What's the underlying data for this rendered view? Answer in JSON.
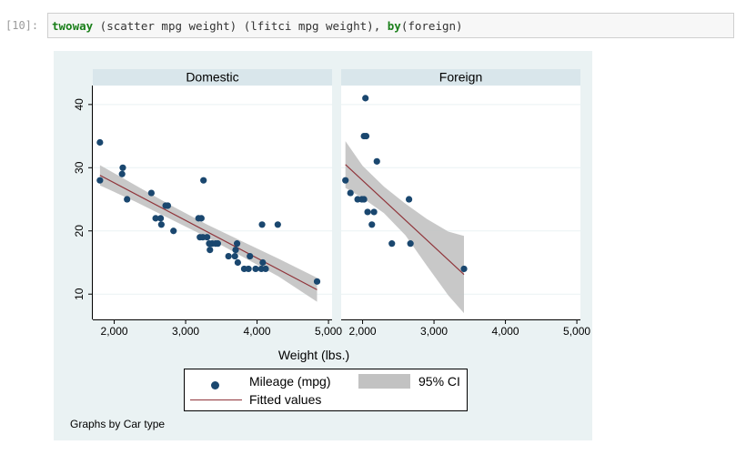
{
  "cell": {
    "prompt": "[10]:",
    "code_parts": [
      {
        "text": "twoway",
        "kw": true
      },
      {
        "text": " (scatter mpg weight) (lfitci mpg weight), ",
        "kw": false
      },
      {
        "text": "by",
        "kw": true
      },
      {
        "text": "(foreign)",
        "kw": false
      }
    ]
  },
  "colors": {
    "marker": "#1a476f",
    "fit_line": "#90353b",
    "ci_band": "#c2c2c2",
    "header": "#d9e6eb",
    "outer_bg": "#eaf2f3",
    "gridline": "#eaf2f3"
  },
  "chart_data": {
    "type": "scatter",
    "by_note": "Graphs by Car type",
    "xlabel": "Weight (lbs.)",
    "ylabel": "",
    "xlim": [
      1700,
      5050
    ],
    "ylim": [
      6,
      43
    ],
    "xticks": [
      2000,
      3000,
      4000,
      5000
    ],
    "xtick_labels": [
      "2,000",
      "3,000",
      "4,000",
      "5,000"
    ],
    "yticks": [
      10,
      20,
      30,
      40
    ],
    "ytick_labels": [
      "10",
      "20",
      "30",
      "40"
    ],
    "grid": true,
    "legend": {
      "placement": "bottom",
      "entries": [
        {
          "label": "Mileage (mpg)",
          "kind": "marker"
        },
        {
          "label": "95% CI",
          "kind": "band"
        },
        {
          "label": "Fitted values",
          "kind": "line"
        }
      ]
    },
    "panels": [
      {
        "title": "Domestic",
        "points": [
          [
            1800,
            34
          ],
          [
            1800,
            28
          ],
          [
            2120,
            30
          ],
          [
            2110,
            29
          ],
          [
            2180,
            25
          ],
          [
            2520,
            26
          ],
          [
            2580,
            22
          ],
          [
            2650,
            22
          ],
          [
            2660,
            21
          ],
          [
            2720,
            24
          ],
          [
            2750,
            24
          ],
          [
            2830,
            20
          ],
          [
            3180,
            22
          ],
          [
            3220,
            22
          ],
          [
            3250,
            28
          ],
          [
            3200,
            19
          ],
          [
            3240,
            19
          ],
          [
            3300,
            19
          ],
          [
            3330,
            18
          ],
          [
            3340,
            17
          ],
          [
            3370,
            18
          ],
          [
            3420,
            18
          ],
          [
            3450,
            18
          ],
          [
            3600,
            16
          ],
          [
            3690,
            16
          ],
          [
            3700,
            17
          ],
          [
            3720,
            18
          ],
          [
            3730,
            15
          ],
          [
            3820,
            14
          ],
          [
            3880,
            14
          ],
          [
            3900,
            16
          ],
          [
            3980,
            14
          ],
          [
            4060,
            14
          ],
          [
            4070,
            21
          ],
          [
            4080,
            15
          ],
          [
            4120,
            14
          ],
          [
            4290,
            21
          ],
          [
            4840,
            12
          ]
        ],
        "fit": {
          "x": [
            1800,
            4840
          ],
          "y": [
            28.8,
            10.7
          ]
        },
        "ci": {
          "x": [
            1800,
            2300,
            2800,
            3300,
            3800,
            4300,
            4840
          ],
          "upper": [
            30.4,
            27.2,
            24.0,
            21.0,
            18.3,
            15.6,
            12.6
          ],
          "lower": [
            27.2,
            24.6,
            21.8,
            19.0,
            15.9,
            12.8,
            8.8
          ]
        }
      },
      {
        "title": "Foreign",
        "points": [
          [
            1760,
            28
          ],
          [
            1830,
            26
          ],
          [
            1930,
            25
          ],
          [
            1990,
            25
          ],
          [
            2020,
            25
          ],
          [
            2020,
            35
          ],
          [
            2040,
            41
          ],
          [
            2050,
            35
          ],
          [
            2070,
            23
          ],
          [
            2130,
            21
          ],
          [
            2160,
            23
          ],
          [
            2200,
            31
          ],
          [
            2410,
            18
          ],
          [
            2650,
            25
          ],
          [
            2670,
            18
          ],
          [
            3420,
            14
          ]
        ],
        "fit": {
          "x": [
            1760,
            3420
          ],
          "y": [
            30.5,
            13.1
          ]
        },
        "ci": {
          "x": [
            1760,
            2000,
            2300,
            2600,
            2900,
            3200,
            3420
          ],
          "upper": [
            34.2,
            30.3,
            27.0,
            24.3,
            21.9,
            19.9,
            19.2
          ],
          "lower": [
            26.8,
            25.2,
            22.8,
            19.3,
            14.5,
            9.8,
            7.0
          ]
        }
      }
    ]
  }
}
